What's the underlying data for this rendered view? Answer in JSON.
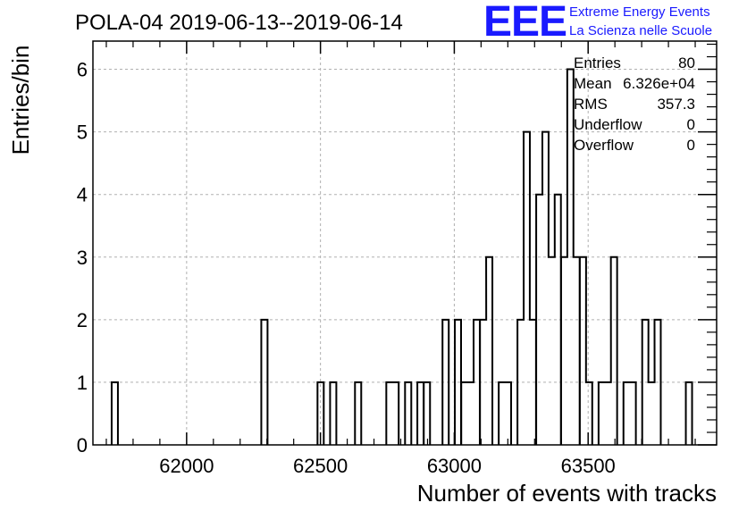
{
  "title": "POLA-04 2019-06-13--2019-06-14",
  "logo": {
    "mark": "EEE",
    "line1": "Extreme Energy Events",
    "line2": "La Scienza nelle Scuole",
    "color": "#1a1aff"
  },
  "stats": {
    "entries_label": "Entries",
    "entries_value": "80",
    "mean_label": "Mean",
    "mean_value": "6.326e+04",
    "rms_label": "RMS",
    "rms_value": "357.3",
    "underflow_label": "Underflow",
    "underflow_value": "0",
    "overflow_label": "Overflow",
    "overflow_value": "0"
  },
  "chart_data": {
    "type": "bar",
    "title": "POLA-04 2019-06-13--2019-06-14",
    "xlabel": "Number of events with tracks",
    "ylabel": "Entries/bin",
    "xlim": [
      61650,
      63980
    ],
    "ylim": [
      0,
      6.45
    ],
    "bin_width": 23.3,
    "grid": true,
    "x_ticks": [
      62000,
      62500,
      63000,
      63500
    ],
    "y_ticks": [
      0,
      1,
      2,
      3,
      4,
      5,
      6
    ],
    "bins": [
      {
        "x": 61720,
        "y": 1
      },
      {
        "x": 62279,
        "y": 2
      },
      {
        "x": 62489,
        "y": 1
      },
      {
        "x": 62536,
        "y": 1
      },
      {
        "x": 62629,
        "y": 1
      },
      {
        "x": 62746,
        "y": 1
      },
      {
        "x": 62769,
        "y": 1
      },
      {
        "x": 62816,
        "y": 1
      },
      {
        "x": 62862,
        "y": 1
      },
      {
        "x": 62886,
        "y": 1
      },
      {
        "x": 62956,
        "y": 2
      },
      {
        "x": 63002,
        "y": 2
      },
      {
        "x": 63026,
        "y": 1
      },
      {
        "x": 63049,
        "y": 1
      },
      {
        "x": 63072,
        "y": 2
      },
      {
        "x": 63096,
        "y": 2
      },
      {
        "x": 63119,
        "y": 3
      },
      {
        "x": 63166,
        "y": 1
      },
      {
        "x": 63189,
        "y": 1
      },
      {
        "x": 63236,
        "y": 2
      },
      {
        "x": 63259,
        "y": 5
      },
      {
        "x": 63282,
        "y": 2
      },
      {
        "x": 63306,
        "y": 4
      },
      {
        "x": 63329,
        "y": 5
      },
      {
        "x": 63352,
        "y": 3
      },
      {
        "x": 63375,
        "y": 4
      },
      {
        "x": 63399,
        "y": 3
      },
      {
        "x": 63422,
        "y": 6
      },
      {
        "x": 63445,
        "y": 3
      },
      {
        "x": 63469,
        "y": 3
      },
      {
        "x": 63492,
        "y": 1
      },
      {
        "x": 63539,
        "y": 1
      },
      {
        "x": 63562,
        "y": 1
      },
      {
        "x": 63585,
        "y": 3
      },
      {
        "x": 63632,
        "y": 1
      },
      {
        "x": 63655,
        "y": 1
      },
      {
        "x": 63702,
        "y": 2
      },
      {
        "x": 63725,
        "y": 1
      },
      {
        "x": 63748,
        "y": 2
      },
      {
        "x": 63865,
        "y": 1
      }
    ]
  }
}
